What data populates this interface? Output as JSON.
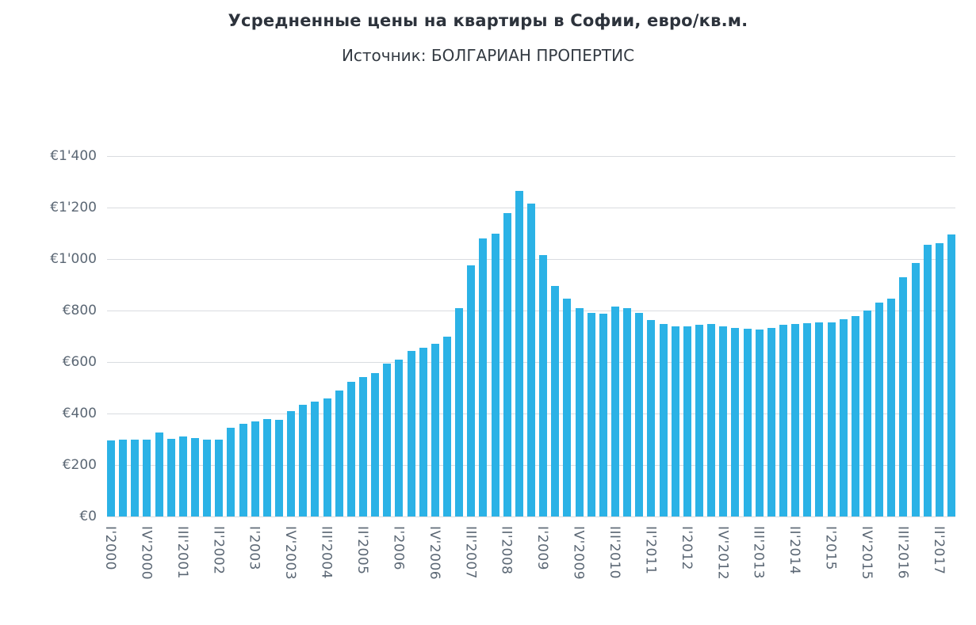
{
  "chart_data": {
    "type": "bar",
    "title": "Усредненные цены на квартиры в Софии, евро/кв.м.",
    "subtitle": "Источник: БОЛГАРИАН ПРОПЕРТИС",
    "ylabel": "евро/кв.м.",
    "xlabel": "",
    "ylim": [
      0,
      1400
    ],
    "ytick_values": [
      0,
      200,
      400,
      600,
      800,
      1000,
      1200,
      1400
    ],
    "ytick_labels": [
      "€0",
      "€200",
      "€400",
      "€600",
      "€800",
      "€1'000",
      "€1'200",
      "€1'400"
    ],
    "grid": "on",
    "legend": "none",
    "x_label_every": 3,
    "bar_color": "#2bb2e6",
    "grid_color": "#d9dce0",
    "axis_label_color": "#5b6774",
    "categories": [
      "I'2000",
      "II'2000",
      "III'2000",
      "IV'2000",
      "I'2001",
      "II'2001",
      "III'2001",
      "IV'2001",
      "I'2002",
      "II'2002",
      "III'2002",
      "IV'2002",
      "I'2003",
      "II'2003",
      "III'2003",
      "IV'2003",
      "I'2004",
      "II'2004",
      "III'2004",
      "IV'2004",
      "I'2005",
      "II'2005",
      "III'2005",
      "IV'2005",
      "I'2006",
      "II'2006",
      "III'2006",
      "IV'2006",
      "I'2007",
      "II'2007",
      "III'2007",
      "IV'2007",
      "I'2008",
      "II'2008",
      "III'2008",
      "IV'2008",
      "I'2009",
      "II'2009",
      "III'2009",
      "IV'2009",
      "I'2010",
      "II'2010",
      "III'2010",
      "IV'2010",
      "I'2011",
      "II'2011",
      "III'2011",
      "IV'2011",
      "I'2012",
      "II'2012",
      "III'2012",
      "IV'2012",
      "I'2013",
      "II'2013",
      "III'2013",
      "IV'2013",
      "I'2014",
      "II'2014",
      "III'2014",
      "IV'2014",
      "I'2015",
      "II'2015",
      "III'2015",
      "IV'2015",
      "I'2016",
      "II'2016",
      "III'2016",
      "IV'2016",
      "I'2017",
      "II'2017",
      "III'2017"
    ],
    "values": [
      295,
      300,
      297,
      300,
      325,
      302,
      310,
      305,
      297,
      300,
      345,
      360,
      370,
      377,
      375,
      410,
      435,
      447,
      460,
      490,
      523,
      543,
      558,
      595,
      610,
      643,
      655,
      672,
      700,
      810,
      975,
      1080,
      1100,
      1180,
      1266,
      1216,
      1015,
      895,
      845,
      810,
      790,
      788,
      815,
      808,
      790,
      763,
      748,
      740,
      740,
      745,
      747,
      738,
      733,
      730,
      727,
      733,
      745,
      748,
      750,
      755,
      755,
      765,
      778,
      800,
      830,
      845,
      930,
      985,
      1055,
      1062,
      1095
    ]
  }
}
